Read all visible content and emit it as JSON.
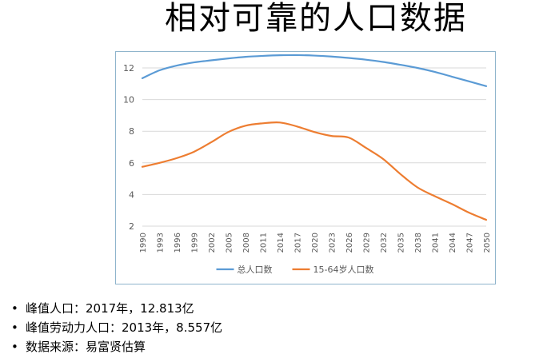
{
  "slide": {
    "title": "相对可靠的人口数据"
  },
  "chart_data": {
    "type": "line",
    "title": "",
    "xlabel": "",
    "ylabel": "",
    "ylim": [
      2,
      12
    ],
    "yticks": [
      2,
      4,
      6,
      8,
      10,
      12
    ],
    "grid": true,
    "legend_position": "bottom",
    "x_tick_labels": [
      "1990",
      "1993",
      "1996",
      "1999",
      "2002",
      "2005",
      "2008",
      "2011",
      "2014",
      "2017",
      "2020",
      "2023",
      "2026",
      "2029",
      "2032",
      "2035",
      "2038",
      "2041",
      "2044",
      "2047",
      "2050"
    ],
    "x": [
      1990,
      1993,
      1996,
      1999,
      2002,
      2005,
      2008,
      2011,
      2014,
      2017,
      2020,
      2023,
      2026,
      2029,
      2032,
      2035,
      2038,
      2041,
      2044,
      2047,
      2050
    ],
    "series": [
      {
        "name": "总人口数",
        "color": "#5b9bd5",
        "values": [
          11.35,
          11.85,
          12.15,
          12.35,
          12.48,
          12.6,
          12.7,
          12.76,
          12.8,
          12.81,
          12.78,
          12.72,
          12.63,
          12.52,
          12.38,
          12.2,
          12.0,
          11.75,
          11.45,
          11.15,
          10.85
        ]
      },
      {
        "name": "15-64岁人口数",
        "color": "#ed7d31",
        "values": [
          5.75,
          6.0,
          6.3,
          6.7,
          7.3,
          7.95,
          8.35,
          8.5,
          8.55,
          8.3,
          7.95,
          7.7,
          7.6,
          6.95,
          6.25,
          5.3,
          4.45,
          3.9,
          3.4,
          2.85,
          2.4
        ]
      }
    ]
  },
  "bullets": [
    {
      "bullet": "•",
      "text": "峰值人口：2017年，12.813亿"
    },
    {
      "bullet": "•",
      "text": "峰值劳动力人口：2013年，8.557亿"
    },
    {
      "bullet": "•",
      "text": "数据来源：易富贤估算"
    }
  ]
}
